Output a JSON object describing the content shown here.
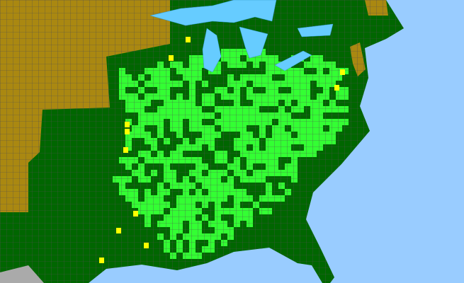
{
  "map": {
    "colors": {
      "ocean": "#99ccff",
      "lake": "#66ccff",
      "present": "#006600",
      "present_county": "#33ff33",
      "absent_state": "#aa8811",
      "noted": "#ffff00",
      "outside": "#aaaaaa",
      "county_border": "#505050"
    }
  }
}
